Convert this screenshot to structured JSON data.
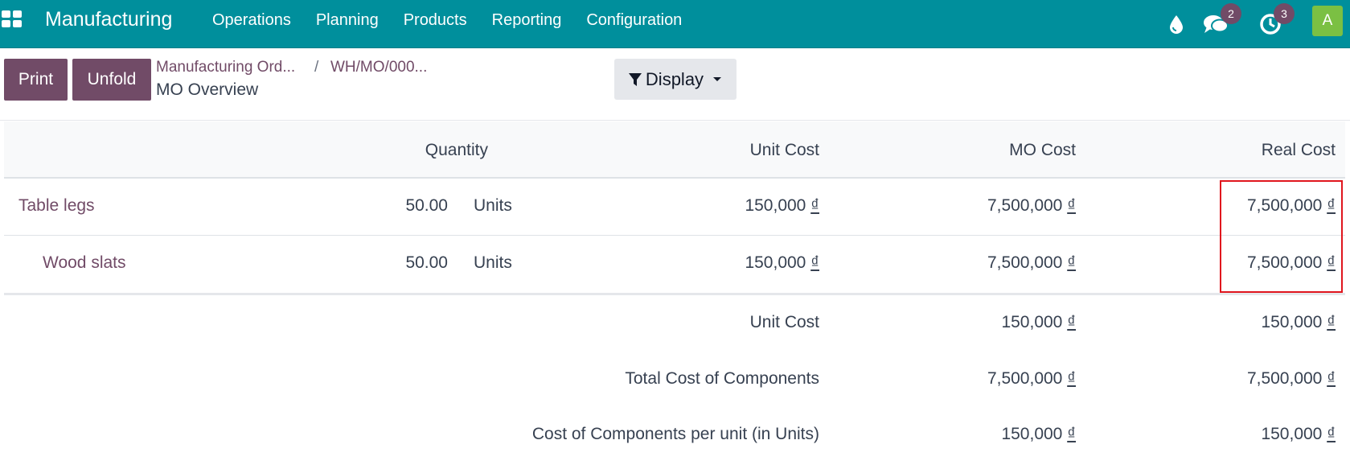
{
  "navbar": {
    "brand": "Manufacturing",
    "menu": [
      "Operations",
      "Planning",
      "Products",
      "Reporting",
      "Configuration"
    ],
    "icons": [
      "apps-grid-icon",
      "drop-icon",
      "chat-icon",
      "clock-icon"
    ],
    "messages_count": "2",
    "activities_count": "3",
    "avatar_letter": "A"
  },
  "control_panel": {
    "print_label": "Print",
    "unfold_label": "Unfold",
    "breadcrumb": [
      "Manufacturing Ord...",
      "WH/MO/000..."
    ],
    "breadcrumb_sep": "/",
    "current": "MO Overview",
    "display_label": "Display"
  },
  "table": {
    "headers": {
      "quantity": "Quantity",
      "unit_cost": "Unit Cost",
      "mo_cost": "MO Cost",
      "real_cost": "Real Cost"
    },
    "rows": [
      {
        "name": "Table legs",
        "qty": "50.00",
        "uom": "Units",
        "unit_cost": "150,000",
        "mo_cost": "7,500,000",
        "real_cost": "7,500,000"
      },
      {
        "name": "Wood slats",
        "qty": "50.00",
        "uom": "Units",
        "unit_cost": "150,000",
        "mo_cost": "7,500,000",
        "real_cost": "7,500,000"
      }
    ],
    "summary": [
      {
        "label": "Unit Cost",
        "mo_cost": "150,000",
        "real_cost": "150,000"
      },
      {
        "label": "Total Cost of Components",
        "mo_cost": "7,500,000",
        "real_cost": "7,500,000"
      },
      {
        "label": "Cost of Components per unit (in Units)",
        "mo_cost": "150,000",
        "real_cost": "150,000"
      }
    ],
    "currency": "₫"
  },
  "colors": {
    "navbar": "#008f9c",
    "primary": "#714b67",
    "highlight": "#e0161e"
  }
}
